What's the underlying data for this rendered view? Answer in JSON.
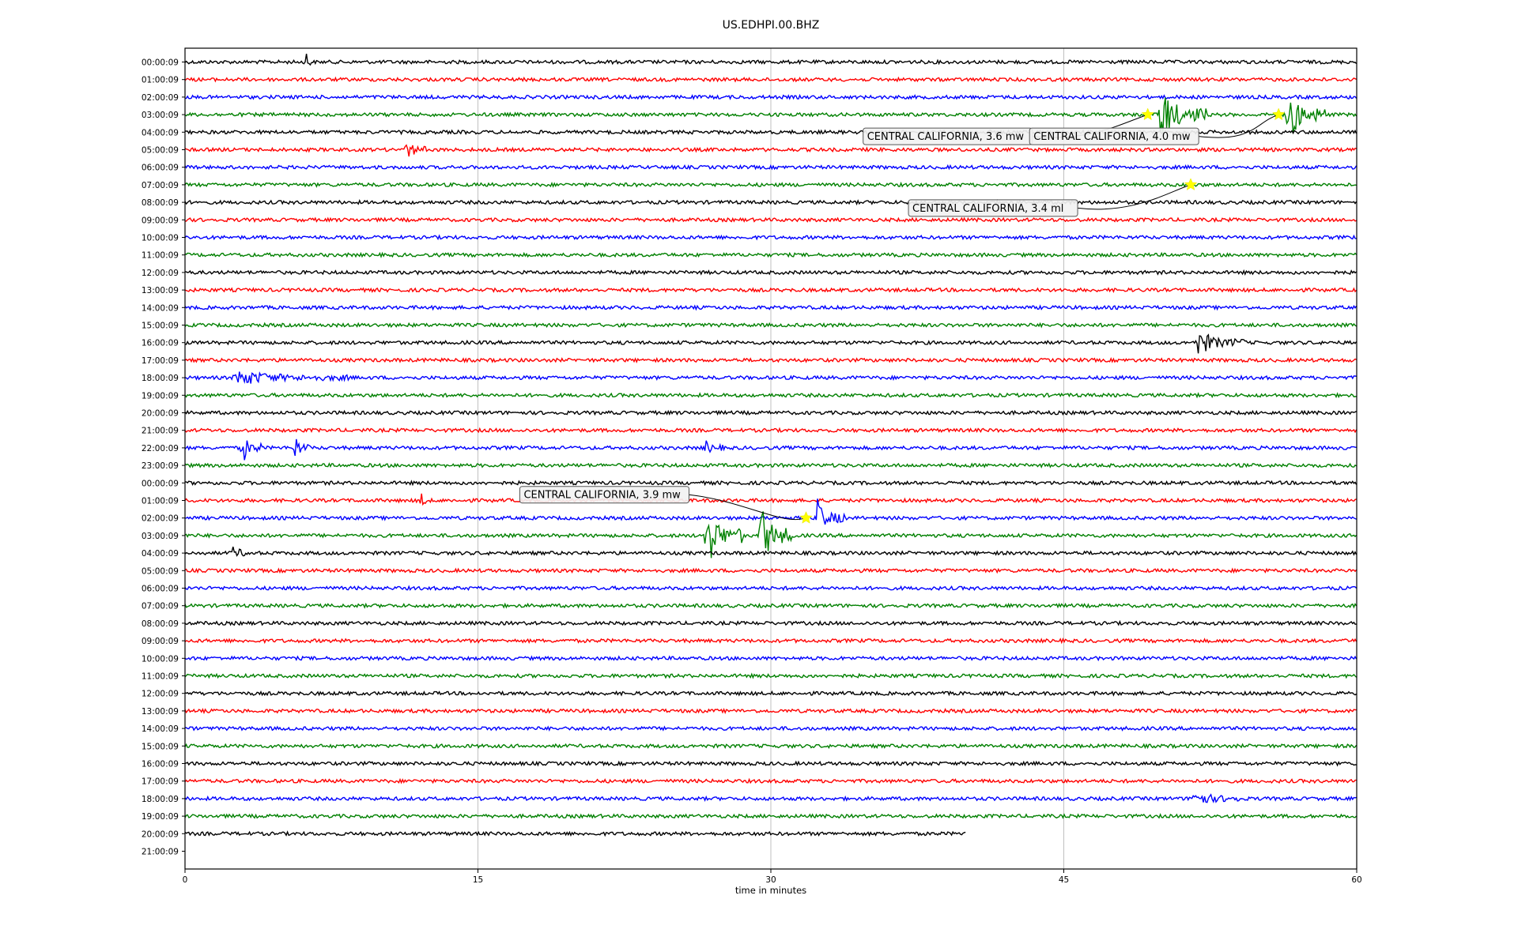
{
  "chart_data": {
    "type": "line",
    "title": "US.EDHPI.00.BHZ",
    "xlabel": "time in minutes",
    "ylabel": "",
    "xlim": [
      0,
      60
    ],
    "xticks": [
      0,
      15,
      30,
      45,
      60
    ],
    "grid": true,
    "colors": [
      "#000000",
      "#ff0000",
      "#0000ff",
      "#008000"
    ],
    "row_labels": [
      "00:00:09",
      "01:00:09",
      "02:00:09",
      "03:00:09",
      "04:00:09",
      "05:00:09",
      "06:00:09",
      "07:00:09",
      "08:00:09",
      "09:00:09",
      "10:00:09",
      "11:00:09",
      "12:00:09",
      "13:00:09",
      "14:00:09",
      "15:00:09",
      "16:00:09",
      "17:00:09",
      "18:00:09",
      "19:00:09",
      "20:00:09",
      "21:00:09",
      "22:00:09",
      "23:00:09",
      "00:00:09",
      "01:00:09",
      "02:00:09",
      "03:00:09",
      "04:00:09",
      "05:00:09",
      "06:00:09",
      "07:00:09",
      "08:00:09",
      "09:00:09",
      "10:00:09",
      "11:00:09",
      "12:00:09",
      "13:00:09",
      "14:00:09",
      "15:00:09",
      "16:00:09",
      "17:00:09",
      "18:00:09",
      "19:00:09",
      "20:00:09",
      "21:00:09"
    ],
    "trace_end_minutes": [
      60,
      60,
      60,
      60,
      60,
      60,
      60,
      60,
      60,
      60,
      60,
      60,
      60,
      60,
      60,
      60,
      60,
      60,
      60,
      60,
      60,
      60,
      60,
      60,
      60,
      60,
      60,
      60,
      60,
      60,
      60,
      60,
      60,
      60,
      60,
      60,
      60,
      60,
      60,
      60,
      60,
      60,
      60,
      60,
      40,
      0
    ],
    "bursts": [
      {
        "row": 0,
        "minute": 6.2,
        "duration": 0.3,
        "amplitude": 1.3
      },
      {
        "row": 3,
        "minute": 49.8,
        "duration": 2.5,
        "amplitude": 3.2
      },
      {
        "row": 3,
        "minute": 56.4,
        "duration": 2.0,
        "amplitude": 3.0
      },
      {
        "row": 5,
        "minute": 11.3,
        "duration": 1.2,
        "amplitude": 1.0
      },
      {
        "row": 16,
        "minute": 51.8,
        "duration": 2.5,
        "amplitude": 1.3
      },
      {
        "row": 18,
        "minute": 2.5,
        "duration": 6.0,
        "amplitude": 0.7
      },
      {
        "row": 22,
        "minute": 2.9,
        "duration": 1.0,
        "amplitude": 1.6
      },
      {
        "row": 22,
        "minute": 5.6,
        "duration": 0.8,
        "amplitude": 1.3
      },
      {
        "row": 22,
        "minute": 26.6,
        "duration": 1.0,
        "amplitude": 0.7
      },
      {
        "row": 25,
        "minute": 12.0,
        "duration": 0.6,
        "amplitude": 1.0
      },
      {
        "row": 26,
        "minute": 32.3,
        "duration": 1.5,
        "amplitude": 2.0
      },
      {
        "row": 27,
        "minute": 26.6,
        "duration": 2.0,
        "amplitude": 3.5
      },
      {
        "row": 27,
        "minute": 29.4,
        "duration": 1.8,
        "amplitude": 3.5
      },
      {
        "row": 28,
        "minute": 2.4,
        "duration": 1.0,
        "amplitude": 0.8
      },
      {
        "row": 42,
        "minute": 51.5,
        "duration": 2.5,
        "amplitude": 0.9
      }
    ],
    "events": [
      {
        "label": "CENTRAL CALIFORNIA, 3.6 mw",
        "row": 3,
        "minute": 49.3,
        "label_position": "left"
      },
      {
        "label": "CENTRAL CALIFORNIA, 4.0 mw",
        "row": 3,
        "minute": 56.0,
        "label_position": "left"
      },
      {
        "label": "CENTRAL CALIFORNIA, 3.4 ml",
        "row": 7,
        "minute": 51.5,
        "label_position": "left"
      },
      {
        "label": "CENTRAL CALIFORNIA, 3.9 mw",
        "row": 26,
        "minute": 31.8,
        "label_position": "left"
      }
    ]
  }
}
